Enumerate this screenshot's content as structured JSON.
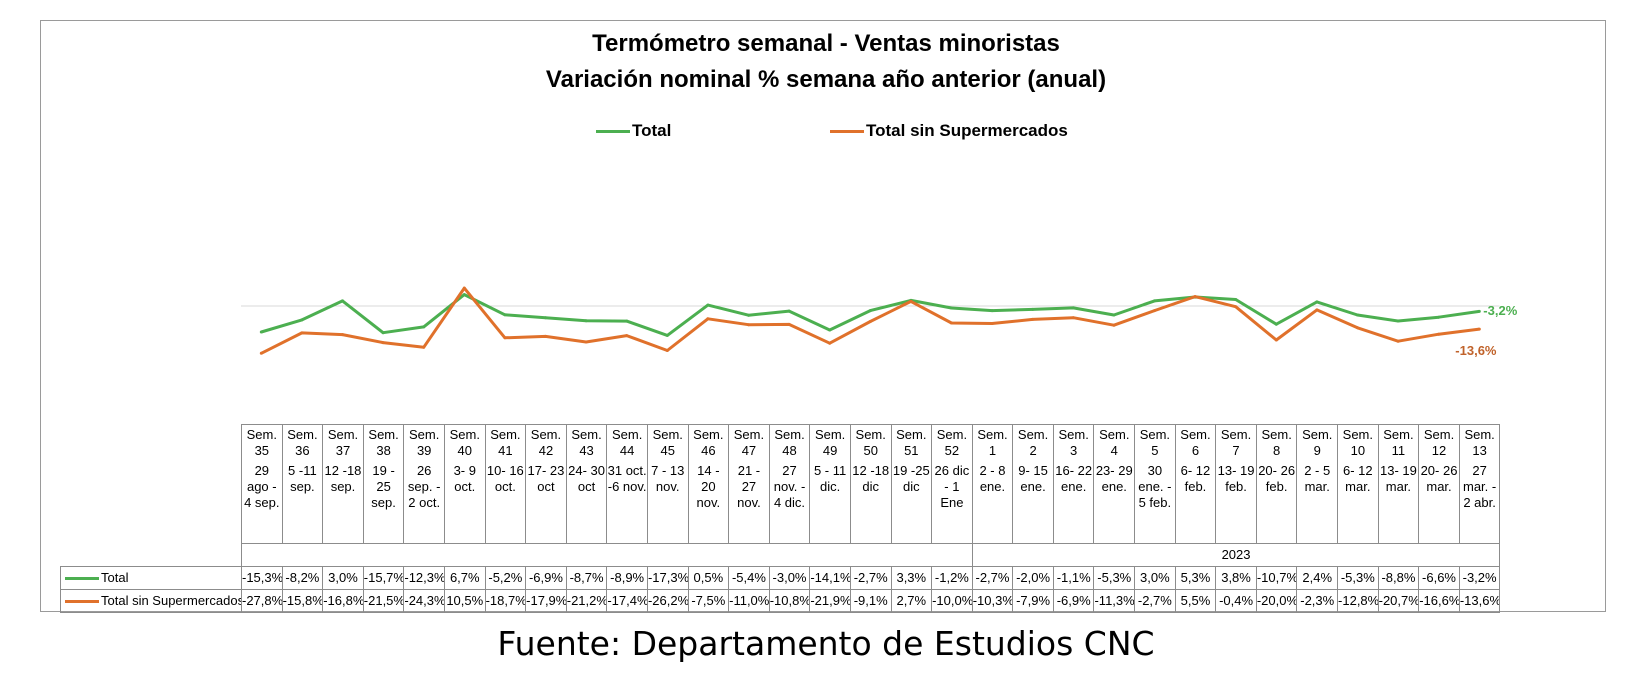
{
  "chart_data": {
    "type": "line",
    "title": "Termómetro semanal - Ventas minoristas",
    "subtitle": "Variación nominal % semana año anterior (anual)",
    "year_label": "2023",
    "categories": [
      {
        "sem": "Sem. 35",
        "range": "29 ago - 4 sep."
      },
      {
        "sem": "Sem. 36",
        "range": "5 -11 sep."
      },
      {
        "sem": "Sem. 37",
        "range": "12 -18 sep."
      },
      {
        "sem": "Sem. 38",
        "range": "19 - 25 sep."
      },
      {
        "sem": "Sem. 39",
        "range": "26 sep. - 2 oct."
      },
      {
        "sem": "Sem. 40",
        "range": "3- 9 oct."
      },
      {
        "sem": "Sem. 41",
        "range": "10- 16 oct."
      },
      {
        "sem": "Sem. 42",
        "range": "17- 23 oct"
      },
      {
        "sem": "Sem. 43",
        "range": "24- 30 oct"
      },
      {
        "sem": "Sem. 44",
        "range": "31 oct. -6 nov."
      },
      {
        "sem": "Sem. 45",
        "range": "7 - 13 nov."
      },
      {
        "sem": "Sem. 46",
        "range": "14 - 20 nov."
      },
      {
        "sem": "Sem. 47",
        "range": "21 - 27 nov."
      },
      {
        "sem": "Sem. 48",
        "range": "27 nov. - 4 dic."
      },
      {
        "sem": "Sem. 49",
        "range": "5 - 11 dic."
      },
      {
        "sem": "Sem. 50",
        "range": "12 -18 dic"
      },
      {
        "sem": "Sem. 51",
        "range": "19 -25 dic"
      },
      {
        "sem": "Sem. 52",
        "range": "26 dic - 1 Ene"
      },
      {
        "sem": "Sem. 1",
        "range": "2 - 8 ene."
      },
      {
        "sem": "Sem. 2",
        "range": "9- 15 ene."
      },
      {
        "sem": "Sem. 3",
        "range": "16- 22 ene."
      },
      {
        "sem": "Sem. 4",
        "range": "23- 29 ene."
      },
      {
        "sem": "Sem. 5",
        "range": "30 ene. - 5 feb."
      },
      {
        "sem": "Sem. 6",
        "range": "6- 12 feb."
      },
      {
        "sem": "Sem. 7",
        "range": "13- 19 feb."
      },
      {
        "sem": "Sem. 8",
        "range": "20- 26 feb."
      },
      {
        "sem": "Sem. 9",
        "range": "2 - 5 mar."
      },
      {
        "sem": "Sem. 10",
        "range": "6- 12 mar."
      },
      {
        "sem": "Sem. 11",
        "range": "13- 19 mar."
      },
      {
        "sem": "Sem. 12",
        "range": "20- 26 mar."
      },
      {
        "sem": "Sem. 13",
        "range": "27 mar. - 2 abr."
      }
    ],
    "series": [
      {
        "name": "Total",
        "color": "#4CAF50",
        "end_label": "-3,2%",
        "values": [
          -15.3,
          -8.2,
          3.0,
          -15.7,
          -12.3,
          6.7,
          -5.2,
          -6.9,
          -8.7,
          -8.9,
          -17.3,
          0.5,
          -5.4,
          -3.0,
          -14.1,
          -2.7,
          3.3,
          -1.2,
          -2.7,
          -2.0,
          -1.1,
          -5.3,
          3.0,
          5.3,
          3.8,
          -10.7,
          2.4,
          -5.3,
          -8.8,
          -6.6,
          -3.2
        ],
        "labels": [
          "-15,3%",
          "-8,2%",
          "3,0%",
          "-15,7%",
          "-12,3%",
          "6,7%",
          "-5,2%",
          "-6,9%",
          "-8,7%",
          "-8,9%",
          "-17,3%",
          "0,5%",
          "-5,4%",
          "-3,0%",
          "-14,1%",
          "-2,7%",
          "3,3%",
          "-1,2%",
          "-2,7%",
          "-2,0%",
          "-1,1%",
          "-5,3%",
          "3,0%",
          "5,3%",
          "3,8%",
          "-10,7%",
          "2,4%",
          "-5,3%",
          "-8,8%",
          "-6,6%",
          "-3,2%"
        ]
      },
      {
        "name": "Total sin Supermercados",
        "color": "#E0712B",
        "end_label": "-13,6%",
        "values": [
          -27.8,
          -15.8,
          -16.8,
          -21.5,
          -24.3,
          10.5,
          -18.7,
          -17.9,
          -21.2,
          -17.4,
          -26.2,
          -7.5,
          -11.0,
          -10.8,
          -21.9,
          -9.1,
          2.7,
          -10.0,
          -10.3,
          -7.9,
          -6.9,
          -11.3,
          -2.7,
          5.5,
          -0.4,
          -20.0,
          -2.3,
          -12.8,
          -20.7,
          -16.6,
          -13.6
        ],
        "labels": [
          "-27,8%",
          "-15,8%",
          "-16,8%",
          "-21,5%",
          "-24,3%",
          "10,5%",
          "-18,7%",
          "-17,9%",
          "-21,2%",
          "-17,4%",
          "-26,2%",
          "-7,5%",
          "-11,0%",
          "-10,8%",
          "-21,9%",
          "-9,1%",
          "2,7%",
          "-10,0%",
          "-10,3%",
          "-7,9%",
          "-6,9%",
          "-11,3%",
          "-2,7%",
          "5,5%",
          "-0,4%",
          "-20,0%",
          "-2,3%",
          "-12,8%",
          "-20,7%",
          "-16,6%",
          "-13,6%"
        ]
      }
    ],
    "grid": "zero-line only",
    "legend_position": "top-center"
  },
  "source": "Fuente: Departamento de Estudios CNC"
}
